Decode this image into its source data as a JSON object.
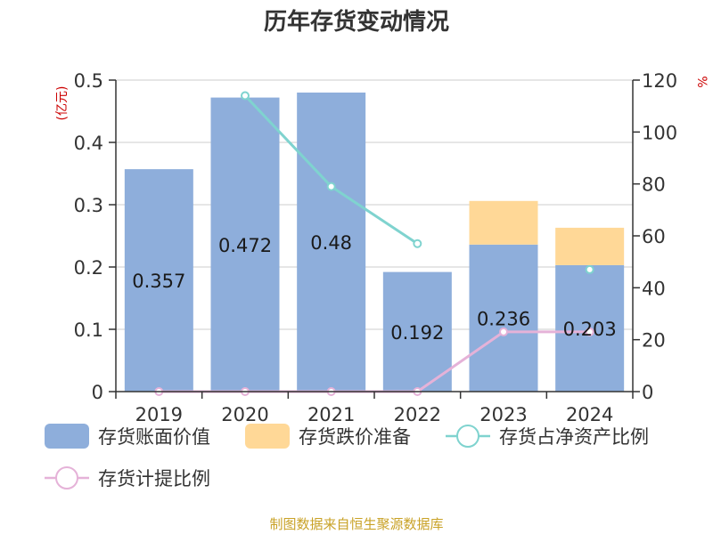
{
  "chart_data": {
    "type": "bar",
    "title": "历年存货变动情况",
    "categories": [
      "2019",
      "2020",
      "2021",
      "2022",
      "2023",
      "2024"
    ],
    "y_left": {
      "unit": "(亿元)",
      "ticks": [
        "0",
        "0.1",
        "0.2",
        "0.3",
        "0.4",
        "0.5"
      ],
      "range": [
        0,
        0.5
      ]
    },
    "y_right": {
      "unit": "%",
      "ticks": [
        "0",
        "20",
        "40",
        "60",
        "80",
        "100",
        "120"
      ],
      "range": [
        0,
        120
      ]
    },
    "series": [
      {
        "name": "存货账面价值",
        "kind": "bar",
        "stack": "inv",
        "axis": "left",
        "color": "#8eaedb",
        "values": [
          0.357,
          0.472,
          0.48,
          0.192,
          0.236,
          0.203
        ],
        "labels": [
          "0.357",
          "0.472",
          "0.48",
          "0.192",
          "0.236",
          "0.203"
        ]
      },
      {
        "name": "存货跌价准备",
        "kind": "bar",
        "stack": "inv",
        "axis": "left",
        "color": "#ffd897",
        "values": [
          0,
          0,
          0,
          0,
          0.07,
          0.06
        ]
      },
      {
        "name": "存货占净资产比例",
        "kind": "line",
        "axis": "right",
        "color": "#7fd3cf",
        "values": [
          null,
          114,
          79,
          57,
          null,
          47
        ]
      },
      {
        "name": "存货计提比例",
        "kind": "line",
        "axis": "right",
        "color": "#e5b2d8",
        "values": [
          0,
          0,
          0,
          0,
          23,
          23
        ]
      }
    ],
    "grid": true,
    "legend_position": "bottom"
  },
  "source": "制图数据来自恒生聚源数据库"
}
